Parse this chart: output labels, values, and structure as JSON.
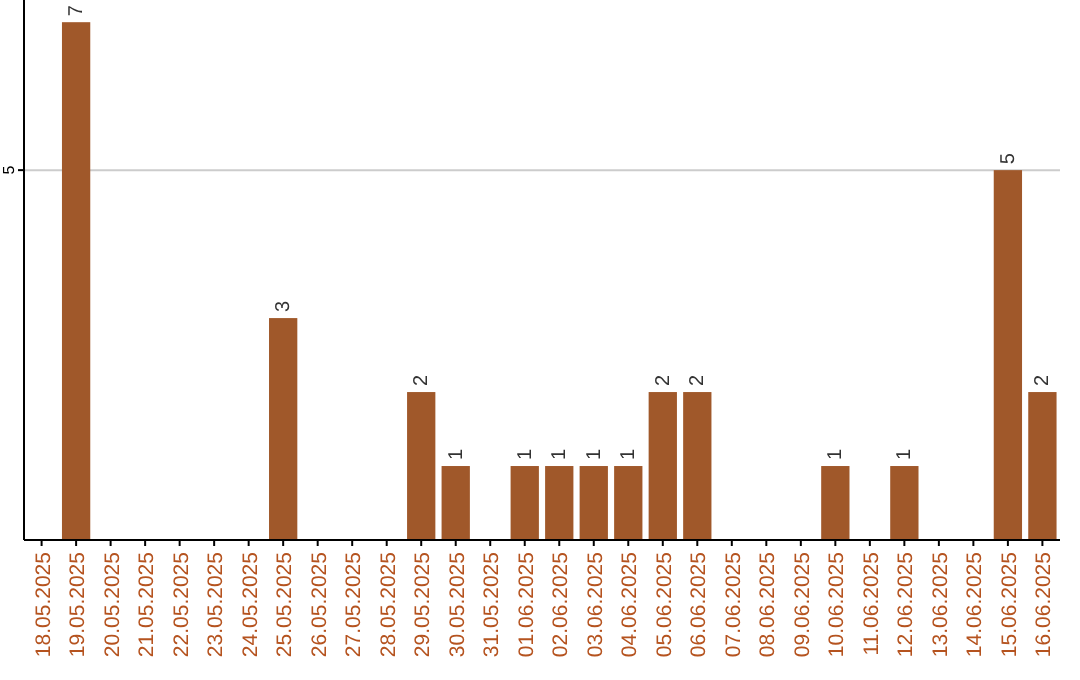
{
  "chart_data": {
    "type": "bar",
    "categories": [
      "18.05.2025",
      "19.05.2025",
      "20.05.2025",
      "21.05.2025",
      "22.05.2025",
      "23.05.2025",
      "24.05.2025",
      "25.05.2025",
      "26.05.2025",
      "27.05.2025",
      "28.05.2025",
      "29.05.2025",
      "30.05.2025",
      "31.05.2025",
      "01.06.2025",
      "02.06.2025",
      "03.06.2025",
      "04.06.2025",
      "05.06.2025",
      "06.06.2025",
      "07.06.2025",
      "08.06.2025",
      "09.06.2025",
      "10.06.2025",
      "11.06.2025",
      "12.06.2025",
      "13.06.2025",
      "14.06.2025",
      "15.06.2025",
      "16.06.2025"
    ],
    "values": [
      0,
      7,
      0,
      0,
      0,
      0,
      0,
      3,
      0,
      0,
      0,
      2,
      1,
      0,
      1,
      1,
      1,
      1,
      2,
      2,
      0,
      0,
      0,
      1,
      0,
      1,
      0,
      0,
      5,
      2
    ],
    "value_labels": [
      null,
      "7",
      null,
      null,
      null,
      null,
      null,
      "3",
      null,
      null,
      null,
      "2",
      "1",
      null,
      "1",
      "1",
      "1",
      "1",
      "2",
      "2",
      null,
      null,
      null,
      "1",
      null,
      "1",
      null,
      null,
      "5",
      "2"
    ],
    "color": "#a0582a",
    "ylim": [
      0,
      7.3
    ],
    "yticks": [
      5
    ],
    "grid": "y"
  }
}
